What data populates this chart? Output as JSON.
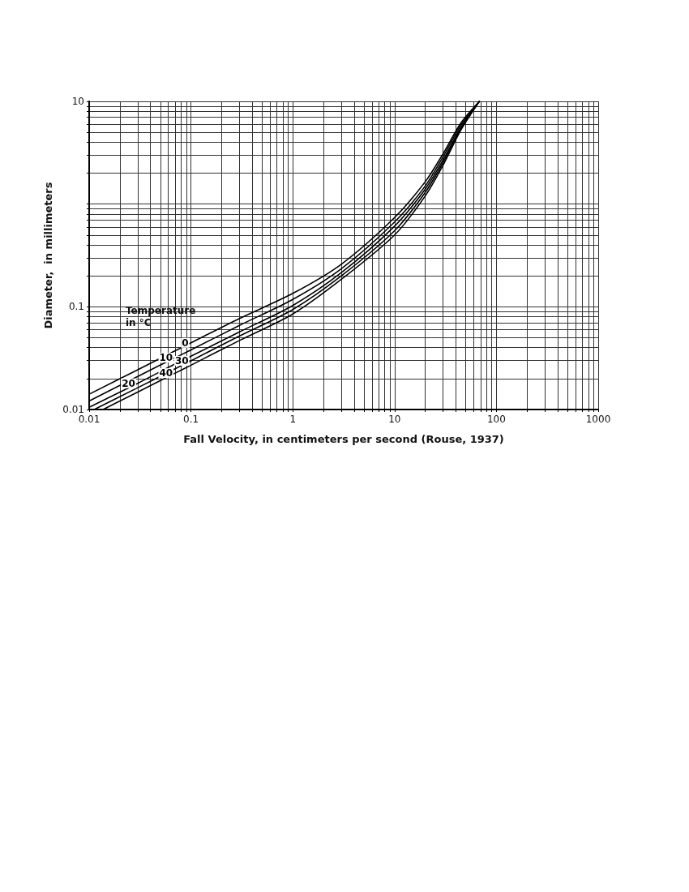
{
  "chart_data": {
    "type": "line",
    "xlabel": "Fall Velocity, in centimeters per second (Rouse, 1937)",
    "ylabel": "Diameter,  in millimeters",
    "legend_title": "Temperature in °C",
    "log": "xy",
    "grid": true,
    "legend": false,
    "xlim": [
      0.01,
      1000
    ],
    "ylim": [
      0.01,
      10
    ],
    "xticks": [
      0.01,
      {
        "value": 0.02,
        "label": null
      },
      {
        "value": 0.03,
        "label": null
      },
      {
        "value": 0.04,
        "label": null
      },
      {
        "value": 0.05,
        "label": null
      },
      {
        "value": 0.06,
        "label": null
      },
      {
        "value": 0.07,
        "label": null
      },
      {
        "value": 0.08,
        "label": null
      },
      {
        "value": 0.09,
        "label": null
      },
      0.1,
      {
        "value": 0.2,
        "label": null
      },
      {
        "value": 0.3,
        "label": null
      },
      {
        "value": 0.4,
        "label": null
      },
      {
        "value": 0.5,
        "label": null
      },
      {
        "value": 0.6,
        "label": null
      },
      {
        "value": 0.7,
        "label": null
      },
      {
        "value": 0.8,
        "label": null
      },
      {
        "value": 0.9,
        "label": null
      },
      1,
      {
        "value": 2,
        "label": null
      },
      {
        "value": 3,
        "label": null
      },
      {
        "value": 4,
        "label": null
      },
      {
        "value": 5,
        "label": null
      },
      {
        "value": 6,
        "label": null
      },
      {
        "value": 7,
        "label": null
      },
      {
        "value": 8,
        "label": null
      },
      {
        "value": 9,
        "label": null
      },
      10,
      {
        "value": 20,
        "label": null
      },
      {
        "value": 30,
        "label": null
      },
      {
        "value": 40,
        "label": null
      },
      {
        "value": 50,
        "label": null
      },
      {
        "value": 60,
        "label": null
      },
      {
        "value": 70,
        "label": null
      },
      {
        "value": 80,
        "label": null
      },
      {
        "value": 90,
        "label": null
      },
      100,
      {
        "value": 200,
        "label": null
      },
      {
        "value": 300,
        "label": null
      },
      {
        "value": 400,
        "label": null
      },
      {
        "value": 500,
        "label": null
      },
      {
        "value": 600,
        "label": null
      },
      {
        "value": 700,
        "label": null
      },
      {
        "value": 800,
        "label": null
      },
      {
        "value": 900,
        "label": null
      },
      1000
    ],
    "yticks": [
      0.01,
      {
        "value": 0.02,
        "label": null
      },
      {
        "value": 0.03,
        "label": null
      },
      {
        "value": 0.04,
        "label": null
      },
      {
        "value": 0.05,
        "label": null
      },
      {
        "value": 0.06,
        "label": null
      },
      {
        "value": 0.07,
        "label": null
      },
      {
        "value": 0.08,
        "label": null
      },
      {
        "value": 0.09,
        "label": null
      },
      0.1,
      {
        "value": 0.2,
        "label": null
      },
      {
        "value": 0.3,
        "label": null
      },
      {
        "value": 0.4,
        "label": null
      },
      {
        "value": 0.5,
        "label": null
      },
      {
        "value": 0.6,
        "label": null
      },
      {
        "value": 0.7,
        "label": null
      },
      {
        "value": 0.8,
        "label": null
      },
      {
        "value": 0.9,
        "label": null
      },
      {
        "value": 1,
        "label": null
      },
      {
        "value": 2,
        "label": null
      },
      {
        "value": 3,
        "label": null
      },
      {
        "value": 4,
        "label": null
      },
      {
        "value": 5,
        "label": null
      },
      {
        "value": 6,
        "label": null
      },
      {
        "value": 7,
        "label": null
      },
      {
        "value": 8,
        "label": null
      },
      {
        "value": 9,
        "label": null
      },
      10
    ],
    "series": [
      {
        "name": "0",
        "color": "#000000",
        "x": [
          0.01,
          0.03,
          0.07,
          0.1,
          0.3,
          1,
          3,
          10,
          20,
          30,
          45,
          68
        ],
        "values": [
          0.0141,
          0.0244,
          0.0373,
          0.0446,
          0.077,
          0.135,
          0.26,
          0.74,
          1.65,
          3.1,
          6.2,
          10
        ]
      },
      {
        "name": "10",
        "color": "#000000",
        "x": [
          0.01,
          0.03,
          0.07,
          0.1,
          0.3,
          1,
          3,
          10,
          20,
          30,
          45,
          68
        ],
        "values": [
          0.0121,
          0.021,
          0.032,
          0.038,
          0.066,
          0.118,
          0.235,
          0.67,
          1.5,
          2.9,
          5.9,
          10
        ]
      },
      {
        "name": "20",
        "color": "#000000",
        "x": [
          0.01,
          0.03,
          0.07,
          0.1,
          0.3,
          1,
          3,
          10,
          20,
          30,
          45,
          68
        ],
        "values": [
          0.0105,
          0.018,
          0.0278,
          0.033,
          0.057,
          0.103,
          0.215,
          0.61,
          1.4,
          2.7,
          5.6,
          10
        ]
      },
      {
        "name": "30",
        "color": "#000000",
        "x": [
          0.0112,
          0.03,
          0.07,
          0.1,
          0.3,
          1,
          3,
          10,
          20,
          30,
          45,
          68
        ],
        "values": [
          0.01,
          0.0163,
          0.0249,
          0.0298,
          0.052,
          0.094,
          0.2,
          0.55,
          1.3,
          2.55,
          5.45,
          10
        ]
      },
      {
        "name": "40",
        "color": "#000000",
        "x": [
          0.0137,
          0.03,
          0.07,
          0.1,
          0.3,
          1,
          3,
          10,
          20,
          30,
          45,
          68
        ],
        "values": [
          0.01,
          0.0148,
          0.0226,
          0.027,
          0.047,
          0.085,
          0.185,
          0.5,
          1.2,
          2.4,
          5.3,
          10
        ]
      }
    ]
  }
}
